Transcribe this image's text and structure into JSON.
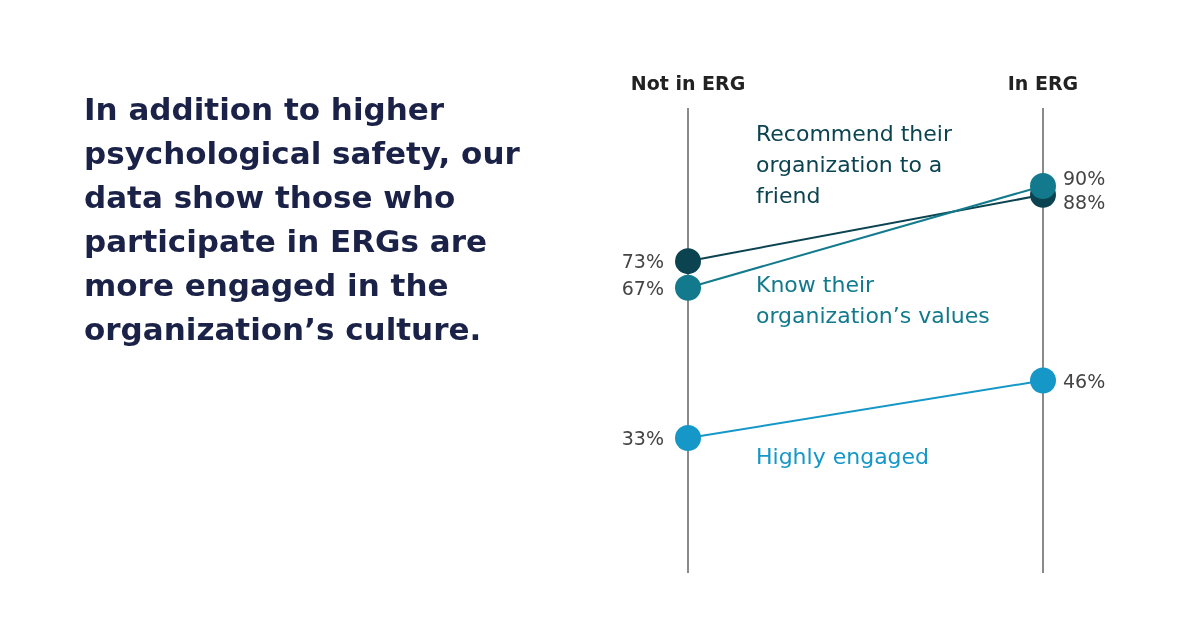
{
  "chart_data": {
    "type": "line",
    "title": "In addition to higher psychological safety, our data show those who participate in ERGs are more engaged in the organization’s culture.",
    "categories": [
      "Not in ERG",
      "In ERG"
    ],
    "marker": "circle",
    "legend": false,
    "tick_labels": "x",
    "series": [
      {
        "name": "Recommend their organization to a friend",
        "color": "#0b4351",
        "values": [
          73,
          88
        ],
        "value_labels": [
          "73%",
          "88%"
        ]
      },
      {
        "name": "Know their organization’s values",
        "color": "#127a8c",
        "values": [
          67,
          90
        ],
        "value_labels": [
          "67%",
          "90%"
        ]
      },
      {
        "name": "Highly engaged",
        "color": "#1597c7",
        "values": [
          33,
          46
        ],
        "value_labels": [
          "33%",
          "46%"
        ]
      }
    ]
  }
}
